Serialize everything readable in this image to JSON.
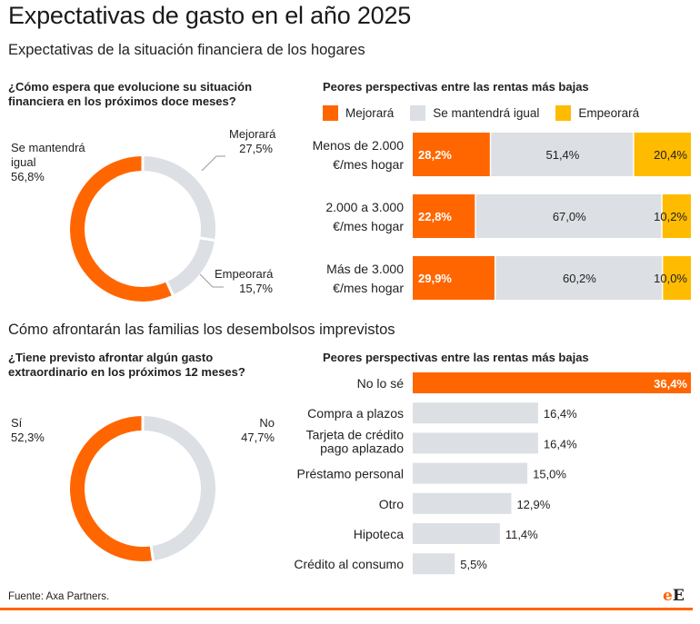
{
  "title": "Expectativas de gasto en el año 2025",
  "colors": {
    "orange": "#ff6600",
    "gray": "#dcdfe3",
    "yellow": "#ffbb00"
  },
  "section1": {
    "title": "Expectativas de la situación financiera de los hogares",
    "question_line1": "¿Cómo espera que evolucione su situación",
    "question_line2": "financiera en los próximos doce meses?",
    "subhead": "Peores perspectivas entre las rentas más bajas",
    "legend": [
      "Mejorará",
      "Se mantendrá igual",
      "Empeorará"
    ],
    "donut_labels": {
      "mantendra_line1": "Se mantendrá",
      "mantendra_line2": "igual",
      "mantendra_value": "56,8%",
      "mejorara": "Mejorará",
      "mejorara_value": "27,5%",
      "empeorara": "Empeorará",
      "empeorara_value": "15,7%"
    }
  },
  "section2": {
    "title": "Cómo afrontarán las familias los desembolsos imprevistos",
    "question_line1": "¿Tiene previsto afrontar algún gasto",
    "question_line2": "extraordinario en los próximos 12 meses?",
    "subhead": "Peores perspectivas entre las rentas más bajas",
    "donut_labels": {
      "si": "Sí",
      "si_value": "52,3%",
      "no": "No",
      "no_value": "47,7%"
    }
  },
  "chart_data": [
    {
      "type": "pie",
      "categories": [
        "Mejorará",
        "Empeorará",
        "Se mantendrá igual"
      ],
      "values": [
        27.5,
        15.7,
        56.8
      ],
      "labels": [
        "27,5%",
        "15,7%",
        "56,8%"
      ]
    },
    {
      "type": "bar",
      "stacked": true,
      "orientation": "horizontal",
      "title": "Peores perspectivas entre las rentas más bajas",
      "categories": [
        [
          "Menos de 2.000",
          "€/mes hogar"
        ],
        [
          "2.000 a 3.000",
          "€/mes hogar"
        ],
        [
          "Más de 3.000",
          "€/mes hogar"
        ]
      ],
      "series": [
        {
          "name": "Mejorará",
          "values": [
            28.2,
            22.8,
            29.9
          ],
          "labels": [
            "28,2%",
            "22,8%",
            "29,9%"
          ]
        },
        {
          "name": "Se mantendrá igual",
          "values": [
            51.4,
            67.0,
            60.2
          ],
          "labels": [
            "51,4%",
            "67,0%",
            "60,2%"
          ]
        },
        {
          "name": "Empeorará",
          "values": [
            20.4,
            10.2,
            10.0
          ],
          "labels": [
            "20,4%",
            "10,2%",
            "10,0%"
          ]
        }
      ]
    },
    {
      "type": "pie",
      "categories": [
        "No",
        "Sí"
      ],
      "values": [
        47.7,
        52.3
      ],
      "labels": [
        "47,7%",
        "52,3%"
      ]
    },
    {
      "type": "bar",
      "orientation": "horizontal",
      "title": "Peores perspectivas entre las rentas más bajas",
      "categories": [
        [
          "No lo sé"
        ],
        [
          "Compra a plazos"
        ],
        [
          "Tarjeta de crédito",
          "pago aplazado"
        ],
        [
          "Préstamo personal"
        ],
        [
          "Otro"
        ],
        [
          "Hipoteca"
        ],
        [
          "Crédito al consumo"
        ]
      ],
      "values": [
        36.4,
        16.4,
        16.4,
        15.0,
        12.9,
        11.4,
        5.5
      ],
      "labels": [
        "36,4%",
        "16,4%",
        "16,4%",
        "15,0%",
        "12,9%",
        "11,4%",
        "5,5%"
      ]
    }
  ],
  "source": "Fuente: Axa Partners.",
  "logo": {
    "e": "e",
    "E": "E"
  }
}
